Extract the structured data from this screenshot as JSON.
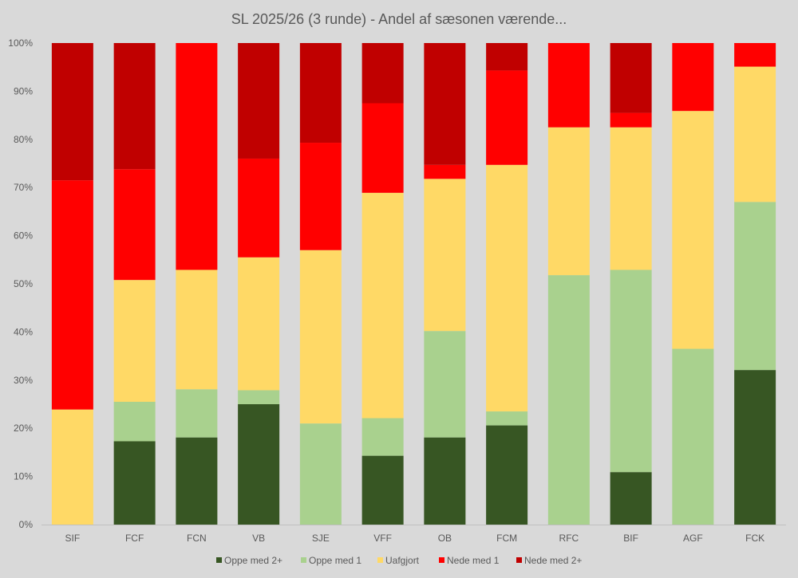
{
  "chart_data": {
    "type": "bar",
    "stacked": "percent",
    "title": "SL 2025/26 (3 runde) - Andel af sæsonen værende...",
    "xlabel": "",
    "ylabel": "",
    "ylim": [
      0,
      100
    ],
    "y_ticks": [
      "0%",
      "10%",
      "20%",
      "30%",
      "40%",
      "50%",
      "60%",
      "70%",
      "80%",
      "90%",
      "100%"
    ],
    "categories": [
      "SIF",
      "FCF",
      "FCN",
      "VB",
      "SJE",
      "VFF",
      "OB",
      "FCM",
      "RFC",
      "BIF",
      "AGF",
      "FCK"
    ],
    "series": [
      {
        "name": "Oppe med 2+",
        "color": "#375623",
        "values": [
          0,
          17.3,
          18.1,
          25.0,
          0,
          14.3,
          18.1,
          20.6,
          0,
          10.9,
          0,
          32.1
        ]
      },
      {
        "name": "Oppe med 1",
        "color": "#a9d18e",
        "values": [
          0,
          8.2,
          10.0,
          2.9,
          21.0,
          7.8,
          22.1,
          2.9,
          51.8,
          42.0,
          36.5,
          34.9
        ]
      },
      {
        "name": "Uafgjort",
        "color": "#ffd966",
        "values": [
          23.9,
          25.3,
          24.8,
          27.6,
          36.0,
          46.8,
          31.6,
          51.2,
          30.7,
          29.6,
          49.4,
          28.1
        ]
      },
      {
        "name": "Nede med 1",
        "color": "#ff0000",
        "values": [
          47.6,
          23.0,
          47.1,
          20.5,
          22.3,
          18.6,
          2.9,
          19.6,
          17.5,
          3.0,
          14.1,
          4.9
        ]
      },
      {
        "name": "Nede med 2+",
        "color": "#c00000",
        "values": [
          28.5,
          26.2,
          0,
          24.0,
          20.7,
          12.5,
          25.3,
          5.7,
          0,
          14.5,
          0,
          0
        ]
      }
    ],
    "grid": false,
    "legend_position": "bottom"
  }
}
